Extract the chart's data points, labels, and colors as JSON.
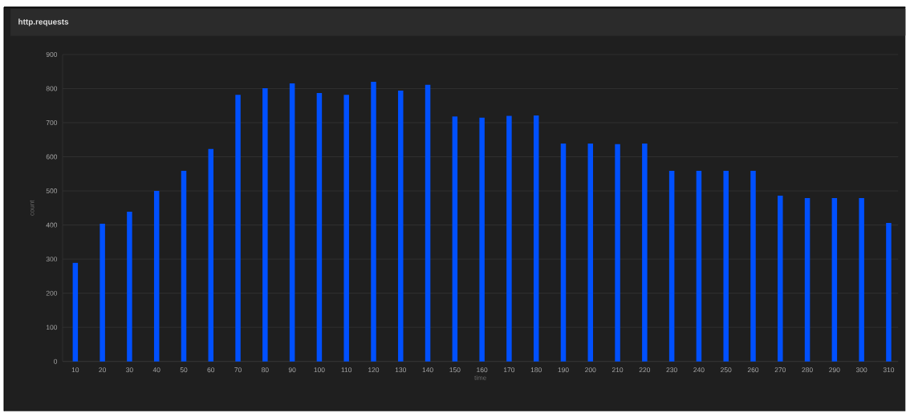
{
  "chart_data": {
    "type": "bar",
    "title": "http.requests",
    "xlabel": "time",
    "ylabel": "count",
    "categories": [
      "10",
      "20",
      "30",
      "40",
      "50",
      "60",
      "70",
      "80",
      "90",
      "100",
      "110",
      "120",
      "130",
      "140",
      "150",
      "160",
      "170",
      "180",
      "190",
      "200",
      "210",
      "220",
      "230",
      "240",
      "250",
      "260",
      "270",
      "280",
      "290",
      "300",
      "310"
    ],
    "values": [
      289,
      404,
      439,
      500,
      559,
      623,
      782,
      801,
      815,
      787,
      782,
      820,
      794,
      811,
      718,
      715,
      720,
      721,
      639,
      639,
      637,
      639,
      559,
      559,
      559,
      559,
      486,
      479,
      479,
      479,
      406
    ],
    "color": "#0050ff",
    "ylim": [
      0,
      900
    ],
    "yticks": [
      0,
      100,
      200,
      300,
      400,
      500,
      600,
      700,
      800,
      900
    ],
    "grid": "y"
  }
}
